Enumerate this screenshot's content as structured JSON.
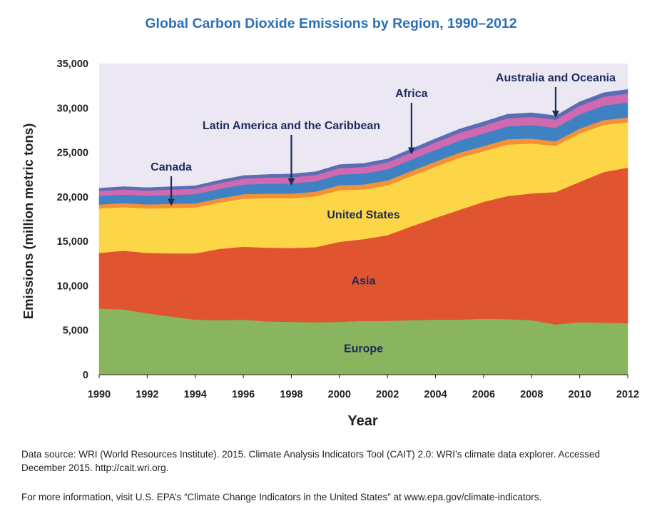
{
  "chart_data": {
    "type": "area",
    "stacked": true,
    "title": "Global Carbon Dioxide Emissions by Region, 1990–2012",
    "xlabel": "Year",
    "ylabel": "Emissions (million metric tons)",
    "xlim": [
      1990,
      2012
    ],
    "ylim": [
      0,
      35000
    ],
    "x_ticks": [
      "1990",
      "1992",
      "1994",
      "1996",
      "1998",
      "2000",
      "2002",
      "2004",
      "2006",
      "2008",
      "2010",
      "2012"
    ],
    "y_ticks": [
      "0",
      "5,000",
      "10,000",
      "15,000",
      "20,000",
      "25,000",
      "30,000",
      "35,000"
    ],
    "grid": false,
    "background_color": "#ebe8f3",
    "x": [
      1990,
      1991,
      1992,
      1993,
      1994,
      1995,
      1996,
      1997,
      1998,
      1999,
      2000,
      2001,
      2002,
      2003,
      2004,
      2005,
      2006,
      2007,
      2008,
      2009,
      2010,
      2011,
      2012
    ],
    "series": [
      {
        "name": "Europe",
        "color": "#88b55e",
        "values": [
          7450,
          7350,
          6900,
          6550,
          6200,
          6150,
          6200,
          6000,
          5950,
          5900,
          5950,
          6050,
          6050,
          6150,
          6200,
          6200,
          6300,
          6250,
          6150,
          5650,
          5900,
          5850,
          5800
        ]
      },
      {
        "name": "Asia",
        "color": "#e05530",
        "values": [
          6250,
          6600,
          6800,
          7100,
          7450,
          8000,
          8200,
          8300,
          8300,
          8450,
          9000,
          9200,
          9650,
          10550,
          11450,
          12350,
          13150,
          13850,
          14250,
          14900,
          15800,
          16950,
          17500
        ]
      },
      {
        "name": "United States",
        "color": "#fdd648",
        "values": [
          5000,
          4900,
          5000,
          5100,
          5150,
          5200,
          5400,
          5550,
          5600,
          5700,
          5800,
          5600,
          5600,
          5650,
          5750,
          5850,
          5700,
          5800,
          5600,
          5200,
          5450,
          5300,
          5100
        ]
      },
      {
        "name": "Canada",
        "color": "#f49136",
        "values": [
          450,
          450,
          460,
          470,
          480,
          490,
          510,
          520,
          520,
          540,
          560,
          550,
          560,
          580,
          580,
          580,
          570,
          590,
          560,
          520,
          540,
          540,
          540
        ]
      },
      {
        "name": "Latin America and the Caribbean",
        "color": "#3f82c4",
        "values": [
          950,
          960,
          980,
          1000,
          1030,
          1060,
          1090,
          1120,
          1150,
          1170,
          1210,
          1230,
          1250,
          1280,
          1320,
          1370,
          1410,
          1460,
          1520,
          1500,
          1600,
          1650,
          1700
        ]
      },
      {
        "name": "Africa",
        "color": "#d169b0",
        "values": [
          570,
          580,
          590,
          600,
          620,
          640,
          660,
          680,
          690,
          700,
          730,
          750,
          770,
          800,
          830,
          860,
          880,
          900,
          920,
          920,
          950,
          970,
          990
        ]
      },
      {
        "name": "Australia and Oceania",
        "color": "#5b6db3",
        "values": [
          300,
          305,
          310,
          315,
          320,
          330,
          340,
          350,
          360,
          365,
          375,
          380,
          390,
          400,
          410,
          420,
          430,
          440,
          450,
          445,
          450,
          455,
          460
        ]
      }
    ],
    "annotations": [
      {
        "text": "Canada",
        "x": 1993
      },
      {
        "text": "Latin America and the Caribbean",
        "x": 1998
      },
      {
        "text": "Africa",
        "x": 2003
      },
      {
        "text": "Australia and Oceania",
        "x": 2009
      }
    ]
  },
  "footnotes": {
    "source": "Data source: WRI (World Resources Institute). 2015. Climate Analysis Indicators Tool (CAIT) 2.0: WRI’s climate data explorer. Accessed December 2015. http://cait.wri.org.",
    "more_info": "For more information, visit U.S. EPA’s “Climate Change Indicators in the United States” at www.epa.gov/climate-indicators."
  }
}
